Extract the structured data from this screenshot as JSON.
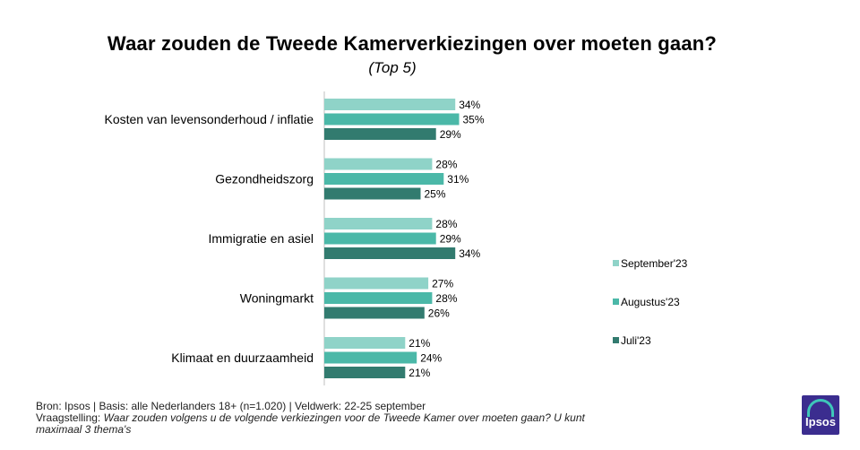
{
  "chart_data": {
    "type": "bar",
    "orientation": "horizontal",
    "title": "Waar zouden de Tweede Kamerverkiezingen over moeten gaan?",
    "subtitle": "(Top 5)",
    "categories": [
      "Kosten van levensonderhoud / inflatie",
      "Gezondheidszorg",
      "Immigratie en asiel",
      "Woningmarkt",
      "Klimaat en duurzaamheid"
    ],
    "series": [
      {
        "name": "September'23",
        "color": "#8fd3c8",
        "values": [
          34,
          28,
          28,
          27,
          21
        ],
        "labels": [
          "34%",
          "28%",
          "28%",
          "27%",
          "21%"
        ]
      },
      {
        "name": "Augustus'23",
        "color": "#4bb8a8",
        "values": [
          35,
          31,
          29,
          28,
          24
        ],
        "labels": [
          "35%",
          "31%",
          "29%",
          "28%",
          "24%"
        ]
      },
      {
        "name": "Juli'23",
        "color": "#327b6f",
        "values": [
          29,
          25,
          34,
          26,
          21
        ],
        "labels": [
          "29%",
          "25%",
          "34%",
          "26%",
          "21%"
        ]
      }
    ],
    "value_unit": "%",
    "xlim": [
      0,
      100
    ],
    "grid": false,
    "legend_position": "right"
  },
  "footer": {
    "source": "Bron: Ipsos | Basis: alle Nederlanders  18+ (n=1.020) | Veldwerk: 22-25  september",
    "question_label": "Vraagstelling: ",
    "question_text": "Waar zouden volgens  u de volgende verkiezingen voor de Tweede  Kamer over moeten gaan?  U kunt",
    "question_text_2": "maximaal  3 thema's"
  },
  "logo": {
    "text": "Ipsos",
    "brand_color": "#3b2d8f",
    "arc_color": "#3ec7b9"
  }
}
